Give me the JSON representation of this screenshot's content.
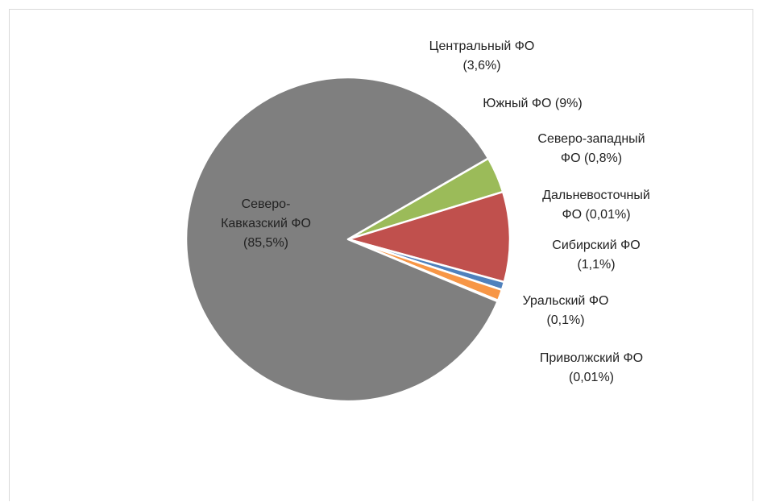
{
  "chart_data": {
    "type": "pie",
    "start_angle_deg": 60,
    "direction": "clockwise",
    "slices": [
      {
        "name_lines": [
          "Центральный ФО"
        ],
        "value_label": "(3,6%)",
        "value": 3.6,
        "color": "#9bbb59"
      },
      {
        "name_lines": [
          "Южный ФО  (9%)"
        ],
        "value_label": "",
        "value": 9,
        "color": "#c0504d"
      },
      {
        "name_lines": [
          "Северо-западный",
          "ФО  (0,8%)"
        ],
        "value_label": "",
        "value": 0.8,
        "color": "#4f81bd"
      },
      {
        "name_lines": [
          "Дальневосточный",
          "ФО (0,01%)"
        ],
        "value_label": "",
        "value": 0.01,
        "color": "#4bacc6"
      },
      {
        "name_lines": [
          "Сибирский ФО"
        ],
        "value_label": "(1,1%)",
        "value": 1.1,
        "color": "#f79646"
      },
      {
        "name_lines": [
          "Уральский ФО"
        ],
        "value_label": "(0,1%)",
        "value": 0.1,
        "color": "#2c4d75"
      },
      {
        "name_lines": [
          "Приволжский ФО"
        ],
        "value_label": "(0,01%)",
        "value": 0.01,
        "color": "#772c2a"
      },
      {
        "name_lines": [
          "Северо-",
          "Кавказский ФО"
        ],
        "value_label": "(85,5%)",
        "value": 85.5,
        "color": "#7f7f7f"
      }
    ]
  }
}
